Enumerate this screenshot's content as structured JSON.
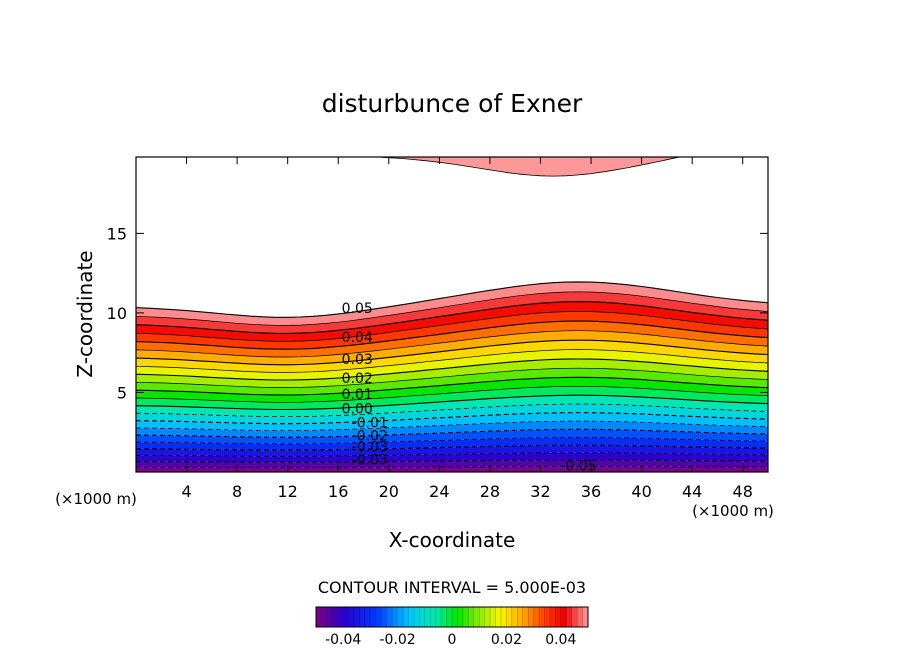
{
  "chart_data": {
    "type": "contour",
    "title": "disturbunce of Exner",
    "xlabel": "X-coordinate",
    "ylabel": "Z-coordinate",
    "x_unit": "(×1000 m)",
    "x_unit_right": "(×1000 m)",
    "xlim": [
      0,
      50
    ],
    "ylim": [
      0,
      19.8
    ],
    "x_ticks": [
      4,
      8,
      12,
      16,
      20,
      24,
      28,
      32,
      36,
      40,
      44,
      48
    ],
    "y_ticks": [
      5,
      10,
      15
    ],
    "contour_interval_text": "CONTOUR INTERVAL = 5.000E-03",
    "contour_labels": [
      {
        "text": "0.05",
        "x": 17.5,
        "z": 10.3
      },
      {
        "text": "0.04",
        "x": 17.5,
        "z": 8.5
      },
      {
        "text": "0.03",
        "x": 17.5,
        "z": 7.1
      },
      {
        "text": "0.02",
        "x": 17.5,
        "z": 5.9
      },
      {
        "text": "0.01",
        "x": 17.5,
        "z": 4.9
      },
      {
        "text": "0.00",
        "x": 17.5,
        "z": 4.0
      },
      {
        "text": "-0.01",
        "x": 18.5,
        "z": 3.1
      },
      {
        "text": "-0.02",
        "x": 18.5,
        "z": 2.3
      },
      {
        "text": "-0.03",
        "x": 18.5,
        "z": 1.6
      },
      {
        "text": "-0.03",
        "x": 18.5,
        "z": 0.8
      },
      {
        "text": "-0.05",
        "x": 35.0,
        "z": 0.4
      }
    ],
    "colorbar": {
      "min": -0.05,
      "max": 0.05,
      "tick_values": [
        -0.04,
        -0.02,
        0,
        0.02,
        0.04
      ],
      "tick_labels": [
        "-0.04",
        "-0.02",
        "0",
        "0.02",
        "0.04"
      ]
    }
  }
}
